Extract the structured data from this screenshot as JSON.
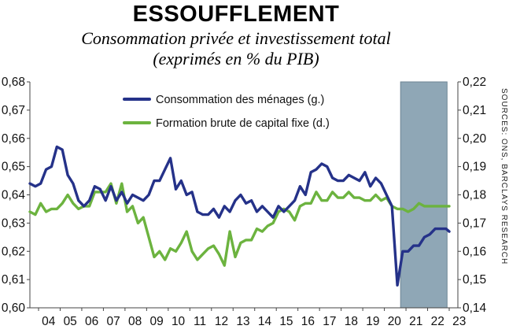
{
  "title": "ESSOUFFLEMENT",
  "subtitle_line1": "Consommation privée et investissement total",
  "subtitle_line2": "(exprimés en % du PIB)",
  "source": "SOURCES: ONS, BARCLAYS RESEARCH",
  "colors": {
    "consumption": "#253289",
    "investment": "#6cb33f",
    "forecast_band": "#8fa7b6"
  },
  "chart_data": {
    "type": "line",
    "title": "ESSOUFFLEMENT",
    "subtitle": "Consommation privée et investissement total (exprimés en % du PIB)",
    "xlabel": "",
    "x_ticks": [
      "04",
      "05",
      "06",
      "07",
      "08",
      "09",
      "10",
      "11",
      "12",
      "13",
      "14",
      "15",
      "16",
      "17",
      "18",
      "19",
      "20",
      "21",
      "22",
      "23"
    ],
    "x_range": [
      2003.6,
      2023.4
    ],
    "left_axis": {
      "ylim": [
        0.6,
        0.68
      ],
      "ticks": [
        "0,60",
        "0,61",
        "0,62",
        "0,63",
        "0,64",
        "0,65",
        "0,66",
        "0,67",
        "0,68"
      ]
    },
    "right_axis": {
      "ylim": [
        0.14,
        0.22
      ],
      "ticks": [
        "0,14",
        "0,15",
        "0,16",
        "0,17",
        "0,18",
        "0,19",
        "0,20",
        "0,21",
        "0,22"
      ]
    },
    "shaded_period": [
      2020.75,
      2022.9
    ],
    "legend_position": "top-left",
    "series": [
      {
        "name": "Consommation des ménages (g.)",
        "axis": "left",
        "x": [
          2003.6,
          2003.85,
          2004.1,
          2004.35,
          2004.6,
          2004.85,
          2005.1,
          2005.35,
          2005.6,
          2005.85,
          2006.1,
          2006.35,
          2006.6,
          2006.85,
          2007.1,
          2007.35,
          2007.6,
          2007.85,
          2008.1,
          2008.35,
          2008.6,
          2008.85,
          2009.1,
          2009.35,
          2009.6,
          2009.85,
          2010.1,
          2010.35,
          2010.6,
          2010.85,
          2011.1,
          2011.35,
          2011.6,
          2011.85,
          2012.1,
          2012.35,
          2012.6,
          2012.85,
          2013.1,
          2013.35,
          2013.6,
          2013.85,
          2014.1,
          2014.35,
          2014.6,
          2014.85,
          2015.1,
          2015.35,
          2015.6,
          2015.85,
          2016.1,
          2016.35,
          2016.6,
          2016.85,
          2017.1,
          2017.35,
          2017.6,
          2017.85,
          2018.1,
          2018.35,
          2018.6,
          2018.85,
          2019.1,
          2019.35,
          2019.6,
          2019.85,
          2020.1,
          2020.35,
          2020.6,
          2020.85,
          2021.1,
          2021.35,
          2021.6,
          2021.85,
          2022.1,
          2022.35,
          2022.6,
          2022.85,
          2023.0
        ],
        "values": [
          0.644,
          0.643,
          0.644,
          0.649,
          0.65,
          0.657,
          0.656,
          0.647,
          0.644,
          0.638,
          0.636,
          0.638,
          0.643,
          0.642,
          0.638,
          0.643,
          0.638,
          0.641,
          0.637,
          0.64,
          0.639,
          0.638,
          0.64,
          0.645,
          0.645,
          0.649,
          0.653,
          0.642,
          0.645,
          0.64,
          0.641,
          0.634,
          0.633,
          0.633,
          0.635,
          0.632,
          0.636,
          0.634,
          0.638,
          0.64,
          0.637,
          0.638,
          0.634,
          0.636,
          0.634,
          0.632,
          0.636,
          0.634,
          0.636,
          0.638,
          0.643,
          0.64,
          0.648,
          0.649,
          0.651,
          0.65,
          0.646,
          0.645,
          0.645,
          0.647,
          0.646,
          0.645,
          0.648,
          0.643,
          0.646,
          0.644,
          0.64,
          0.636,
          0.608,
          0.62,
          0.62,
          0.622,
          0.622,
          0.625,
          0.626,
          0.628,
          0.628,
          0.628,
          0.627
        ]
      },
      {
        "name": "Formation brute de capital fixe (d.)",
        "axis": "right",
        "x": [
          2003.6,
          2003.85,
          2004.1,
          2004.35,
          2004.6,
          2004.85,
          2005.1,
          2005.35,
          2005.6,
          2005.85,
          2006.1,
          2006.35,
          2006.6,
          2006.85,
          2007.1,
          2007.35,
          2007.6,
          2007.85,
          2008.1,
          2008.35,
          2008.6,
          2008.85,
          2009.1,
          2009.35,
          2009.6,
          2009.85,
          2010.1,
          2010.35,
          2010.6,
          2010.85,
          2011.1,
          2011.35,
          2011.6,
          2011.85,
          2012.1,
          2012.35,
          2012.6,
          2012.85,
          2013.1,
          2013.35,
          2013.6,
          2013.85,
          2014.1,
          2014.35,
          2014.6,
          2014.85,
          2015.1,
          2015.35,
          2015.6,
          2015.85,
          2016.1,
          2016.35,
          2016.6,
          2016.85,
          2017.1,
          2017.35,
          2017.6,
          2017.85,
          2018.1,
          2018.35,
          2018.6,
          2018.85,
          2019.1,
          2019.35,
          2019.6,
          2019.85,
          2020.1,
          2020.35,
          2020.6,
          2020.85,
          2021.1,
          2021.35,
          2021.6,
          2021.85,
          2022.1,
          2022.35,
          2022.6,
          2022.85,
          2023.0
        ],
        "values": [
          0.174,
          0.173,
          0.177,
          0.174,
          0.175,
          0.175,
          0.177,
          0.18,
          0.177,
          0.175,
          0.176,
          0.176,
          0.181,
          0.181,
          0.181,
          0.184,
          0.177,
          0.184,
          0.174,
          0.176,
          0.17,
          0.172,
          0.165,
          0.158,
          0.16,
          0.157,
          0.161,
          0.16,
          0.163,
          0.167,
          0.16,
          0.157,
          0.159,
          0.161,
          0.162,
          0.159,
          0.155,
          0.167,
          0.158,
          0.163,
          0.164,
          0.164,
          0.168,
          0.167,
          0.169,
          0.17,
          0.174,
          0.175,
          0.174,
          0.171,
          0.176,
          0.177,
          0.177,
          0.181,
          0.178,
          0.178,
          0.181,
          0.179,
          0.179,
          0.181,
          0.179,
          0.179,
          0.178,
          0.178,
          0.18,
          0.178,
          0.179,
          0.176,
          0.175,
          0.175,
          0.174,
          0.175,
          0.177,
          0.176,
          0.176,
          0.176,
          0.176,
          0.176,
          0.176
        ]
      }
    ]
  }
}
